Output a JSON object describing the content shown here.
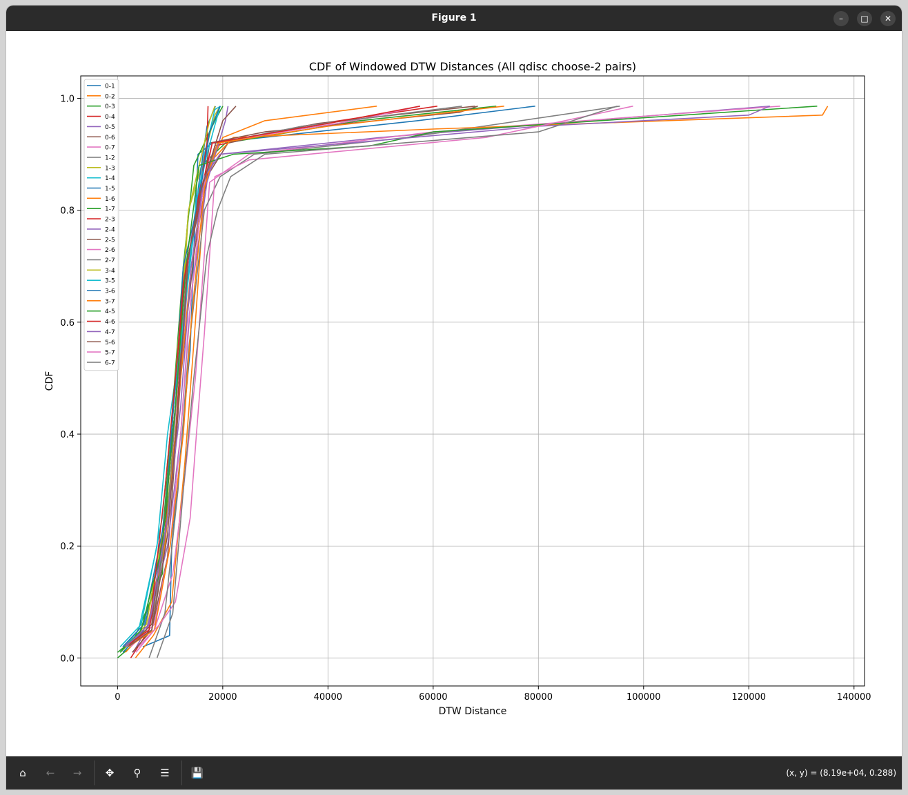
{
  "window": {
    "title": "Figure 1",
    "minimize_icon": "minimize-icon",
    "maximize_icon": "maximize-icon",
    "close_icon": "close-icon"
  },
  "toolbar": {
    "buttons": [
      {
        "name": "home",
        "icon": "home-icon",
        "enabled": true
      },
      {
        "name": "back",
        "icon": "arrow-left-icon",
        "enabled": false
      },
      {
        "name": "forward",
        "icon": "arrow-right-icon",
        "enabled": false
      },
      {
        "name": "pan",
        "icon": "move-icon",
        "enabled": true
      },
      {
        "name": "zoom",
        "icon": "search-icon",
        "enabled": true
      },
      {
        "name": "configure",
        "icon": "sliders-icon",
        "enabled": true
      },
      {
        "name": "save",
        "icon": "save-icon",
        "enabled": true
      }
    ],
    "coords": "(x, y) = (8.19e+04, 0.288)"
  },
  "chart_data": {
    "type": "line",
    "title": "CDF of Windowed DTW Distances (All qdisc choose-2 pairs)",
    "xlabel": "DTW Distance",
    "ylabel": "CDF",
    "xlim": [
      -7000,
      142000
    ],
    "ylim": [
      -0.05,
      1.04
    ],
    "xticks": [
      0,
      20000,
      40000,
      60000,
      80000,
      100000,
      120000,
      140000
    ],
    "xtick_labels": [
      "0",
      "20000",
      "40000",
      "60000",
      "80000",
      "100000",
      "120000",
      "140000"
    ],
    "yticks": [
      0.0,
      0.2,
      0.4,
      0.6,
      0.8,
      1.0
    ],
    "ytick_labels": [
      "0.0",
      "0.2",
      "0.4",
      "0.6",
      "0.8",
      "1.0"
    ],
    "grid": true,
    "legend_position": "top-left",
    "series": [
      {
        "name": "0-1",
        "color": "#1f77b4",
        "points": [
          [
            4800,
            0.02
          ],
          [
            9900,
            0.04
          ],
          [
            10300,
            0.2
          ],
          [
            13800,
            0.55
          ],
          [
            14800,
            0.8
          ],
          [
            15300,
            0.9
          ],
          [
            18000,
            0.92
          ],
          [
            57000,
            0.96
          ],
          [
            79400,
            0.986
          ]
        ]
      },
      {
        "name": "0-2",
        "color": "#ff7f0e",
        "points": [
          [
            3400,
            0.0
          ],
          [
            6800,
            0.04
          ],
          [
            10300,
            0.1
          ],
          [
            12800,
            0.35
          ],
          [
            14800,
            0.6
          ],
          [
            16700,
            0.86
          ],
          [
            20000,
            0.93
          ],
          [
            28000,
            0.96
          ],
          [
            49300,
            0.986
          ]
        ]
      },
      {
        "name": "0-3",
        "color": "#2ca02c",
        "points": [
          [
            0,
            0.0
          ],
          [
            2500,
            0.02
          ],
          [
            8500,
            0.15
          ],
          [
            11000,
            0.5
          ],
          [
            13500,
            0.8
          ],
          [
            16000,
            0.88
          ],
          [
            20500,
            0.92
          ],
          [
            46000,
            0.96
          ],
          [
            72000,
            0.986
          ]
        ]
      },
      {
        "name": "0-4",
        "color": "#d62728",
        "points": [
          [
            2500,
            0.0
          ],
          [
            6000,
            0.05
          ],
          [
            8500,
            0.18
          ],
          [
            11000,
            0.4
          ],
          [
            13200,
            0.7
          ],
          [
            15800,
            0.82
          ],
          [
            18500,
            0.915
          ],
          [
            35000,
            0.95
          ],
          [
            60800,
            0.986
          ]
        ]
      },
      {
        "name": "0-5",
        "color": "#9467bd",
        "points": [
          [
            3000,
            0.01
          ],
          [
            6000,
            0.06
          ],
          [
            9000,
            0.2
          ],
          [
            11500,
            0.45
          ],
          [
            14000,
            0.75
          ],
          [
            16500,
            0.86
          ],
          [
            19500,
            0.9
          ],
          [
            50000,
            0.93
          ],
          [
            124000,
            0.986
          ]
        ]
      },
      {
        "name": "0-6",
        "color": "#8c564b",
        "points": [
          [
            2800,
            0.01
          ],
          [
            6500,
            0.05
          ],
          [
            9500,
            0.18
          ],
          [
            12000,
            0.5
          ],
          [
            14500,
            0.72
          ],
          [
            17000,
            0.86
          ],
          [
            21000,
            0.92
          ],
          [
            38000,
            0.955
          ],
          [
            68000,
            0.986
          ]
        ]
      },
      {
        "name": "0-7",
        "color": "#e377c2",
        "points": [
          [
            3500,
            0.01
          ],
          [
            7000,
            0.05
          ],
          [
            10500,
            0.15
          ],
          [
            12500,
            0.3
          ],
          [
            14800,
            0.5
          ],
          [
            17500,
            0.85
          ],
          [
            25000,
            0.9
          ],
          [
            60000,
            0.94
          ],
          [
            126000,
            0.986
          ]
        ]
      },
      {
        "name": "1-2",
        "color": "#7f7f7f",
        "points": [
          [
            6000,
            0.0
          ],
          [
            9000,
            0.08
          ],
          [
            11500,
            0.3
          ],
          [
            13500,
            0.55
          ],
          [
            16500,
            0.8
          ],
          [
            19500,
            0.86
          ],
          [
            26000,
            0.9
          ],
          [
            55000,
            0.93
          ],
          [
            95500,
            0.986
          ]
        ]
      },
      {
        "name": "1-3",
        "color": "#bcbd22",
        "points": [
          [
            500,
            0.01
          ],
          [
            5000,
            0.05
          ],
          [
            9000,
            0.2
          ],
          [
            11500,
            0.5
          ],
          [
            13500,
            0.8
          ],
          [
            16000,
            0.88
          ],
          [
            18500,
            0.97
          ],
          [
            19500,
            0.986
          ]
        ]
      },
      {
        "name": "1-4",
        "color": "#17becf",
        "points": [
          [
            500,
            0.01
          ],
          [
            4000,
            0.05
          ],
          [
            7500,
            0.2
          ],
          [
            9500,
            0.4
          ],
          [
            12500,
            0.6
          ],
          [
            15000,
            0.8
          ],
          [
            16500,
            0.9
          ],
          [
            18500,
            0.98
          ],
          [
            19600,
            0.986
          ]
        ]
      },
      {
        "name": "1-5",
        "color": "#1f77b4",
        "points": [
          [
            1000,
            0.01
          ],
          [
            5000,
            0.05
          ],
          [
            8000,
            0.18
          ],
          [
            10500,
            0.4
          ],
          [
            13000,
            0.65
          ],
          [
            15500,
            0.85
          ],
          [
            17000,
            0.95
          ],
          [
            18600,
            0.986
          ]
        ]
      },
      {
        "name": "1-6",
        "color": "#ff7f0e",
        "points": [
          [
            1500,
            0.01
          ],
          [
            5500,
            0.05
          ],
          [
            9000,
            0.2
          ],
          [
            11500,
            0.45
          ],
          [
            14000,
            0.7
          ],
          [
            17000,
            0.88
          ],
          [
            22000,
            0.93
          ],
          [
            60000,
            0.945
          ],
          [
            134000,
            0.97
          ],
          [
            135000,
            0.986
          ]
        ]
      },
      {
        "name": "1-7",
        "color": "#2ca02c",
        "points": [
          [
            0,
            0.01
          ],
          [
            4000,
            0.04
          ],
          [
            8000,
            0.15
          ],
          [
            10500,
            0.45
          ],
          [
            12500,
            0.7
          ],
          [
            14500,
            0.88
          ],
          [
            18500,
            0.96
          ],
          [
            20000,
            0.986
          ]
        ]
      },
      {
        "name": "2-3",
        "color": "#d62728",
        "points": [
          [
            1500,
            0.02
          ],
          [
            6000,
            0.06
          ],
          [
            8500,
            0.2
          ],
          [
            11000,
            0.45
          ],
          [
            12500,
            0.66
          ],
          [
            15000,
            0.8
          ],
          [
            17000,
            0.92
          ],
          [
            17200,
            0.986
          ]
        ]
      },
      {
        "name": "2-4",
        "color": "#9467bd",
        "points": [
          [
            1000,
            0.02
          ],
          [
            5500,
            0.05
          ],
          [
            9500,
            0.2
          ],
          [
            12000,
            0.4
          ],
          [
            14000,
            0.65
          ],
          [
            17000,
            0.85
          ],
          [
            20500,
            0.96
          ],
          [
            21000,
            0.986
          ]
        ]
      },
      {
        "name": "2-5",
        "color": "#8c564b",
        "points": [
          [
            2000,
            0.02
          ],
          [
            6500,
            0.06
          ],
          [
            9500,
            0.3
          ],
          [
            11500,
            0.5
          ],
          [
            13500,
            0.72
          ],
          [
            16000,
            0.82
          ],
          [
            17500,
            0.92
          ],
          [
            28000,
            0.94
          ],
          [
            65000,
            0.975
          ],
          [
            68500,
            0.986
          ]
        ]
      },
      {
        "name": "2-6",
        "color": "#e377c2",
        "points": [
          [
            2500,
            0.02
          ],
          [
            7000,
            0.06
          ],
          [
            10000,
            0.2
          ],
          [
            12000,
            0.4
          ],
          [
            13500,
            0.6
          ],
          [
            16000,
            0.82
          ],
          [
            18000,
            0.92
          ],
          [
            45000,
            0.96
          ],
          [
            57500,
            0.986
          ]
        ]
      },
      {
        "name": "2-7",
        "color": "#7f7f7f",
        "points": [
          [
            2000,
            0.02
          ],
          [
            6500,
            0.05
          ],
          [
            9500,
            0.25
          ],
          [
            11500,
            0.5
          ],
          [
            13500,
            0.72
          ],
          [
            16000,
            0.84
          ],
          [
            19000,
            0.92
          ],
          [
            35000,
            0.95
          ],
          [
            65500,
            0.986
          ]
        ]
      },
      {
        "name": "3-4",
        "color": "#bcbd22",
        "points": [
          [
            1500,
            0.02
          ],
          [
            5500,
            0.06
          ],
          [
            9000,
            0.25
          ],
          [
            11000,
            0.5
          ],
          [
            13500,
            0.8
          ],
          [
            17500,
            0.96
          ],
          [
            18500,
            0.986
          ]
        ]
      },
      {
        "name": "3-5",
        "color": "#17becf",
        "points": [
          [
            500,
            0.02
          ],
          [
            4500,
            0.06
          ],
          [
            8500,
            0.25
          ],
          [
            10000,
            0.4
          ],
          [
            12500,
            0.6
          ],
          [
            15000,
            0.82
          ],
          [
            17000,
            0.9
          ],
          [
            19500,
            0.986
          ]
        ]
      },
      {
        "name": "3-6",
        "color": "#1f77b4",
        "points": [
          [
            1000,
            0.02
          ],
          [
            5000,
            0.06
          ],
          [
            9000,
            0.25
          ],
          [
            11500,
            0.55
          ],
          [
            12500,
            0.7
          ],
          [
            15500,
            0.82
          ],
          [
            17500,
            0.94
          ],
          [
            19500,
            0.986
          ]
        ]
      },
      {
        "name": "3-7",
        "color": "#ff7f0e",
        "points": [
          [
            2000,
            0.02
          ],
          [
            7000,
            0.05
          ],
          [
            10000,
            0.2
          ],
          [
            12500,
            0.4
          ],
          [
            14000,
            0.6
          ],
          [
            16500,
            0.84
          ],
          [
            19000,
            0.92
          ],
          [
            40000,
            0.95
          ],
          [
            73500,
            0.986
          ]
        ]
      },
      {
        "name": "4-5",
        "color": "#2ca02c",
        "points": [
          [
            500,
            0.01
          ],
          [
            4500,
            0.05
          ],
          [
            8500,
            0.2
          ],
          [
            11000,
            0.45
          ],
          [
            13000,
            0.7
          ],
          [
            15500,
            0.88
          ],
          [
            22000,
            0.9
          ],
          [
            48000,
            0.915
          ],
          [
            60000,
            0.94
          ],
          [
            133000,
            0.986
          ]
        ]
      },
      {
        "name": "4-6",
        "color": "#d62728",
        "points": [
          [
            1500,
            0.02
          ],
          [
            6000,
            0.05
          ],
          [
            9000,
            0.3
          ],
          [
            11500,
            0.55
          ],
          [
            12500,
            0.67
          ],
          [
            15500,
            0.82
          ],
          [
            18000,
            0.92
          ],
          [
            40000,
            0.955
          ],
          [
            57500,
            0.986
          ]
        ]
      },
      {
        "name": "4-7",
        "color": "#9467bd",
        "points": [
          [
            1500,
            0.02
          ],
          [
            6000,
            0.06
          ],
          [
            9500,
            0.25
          ],
          [
            12000,
            0.45
          ],
          [
            14000,
            0.7
          ],
          [
            16500,
            0.86
          ],
          [
            19500,
            0.9
          ],
          [
            50000,
            0.925
          ],
          [
            80000,
            0.95
          ],
          [
            120000,
            0.97
          ],
          [
            124000,
            0.986
          ]
        ]
      },
      {
        "name": "5-6",
        "color": "#8c564b",
        "points": [
          [
            2000,
            0.02
          ],
          [
            6500,
            0.05
          ],
          [
            9500,
            0.22
          ],
          [
            11500,
            0.45
          ],
          [
            13500,
            0.72
          ],
          [
            16000,
            0.84
          ],
          [
            20000,
            0.96
          ],
          [
            22500,
            0.986
          ]
        ]
      },
      {
        "name": "5-7",
        "color": "#e377c2",
        "points": [
          [
            4000,
            0.02
          ],
          [
            8000,
            0.06
          ],
          [
            11000,
            0.1
          ],
          [
            13800,
            0.25
          ],
          [
            15000,
            0.4
          ],
          [
            16500,
            0.58
          ],
          [
            18500,
            0.86
          ],
          [
            25000,
            0.89
          ],
          [
            70000,
            0.93
          ],
          [
            98000,
            0.986
          ]
        ]
      },
      {
        "name": "6-7",
        "color": "#7f7f7f",
        "points": [
          [
            7500,
            0.0
          ],
          [
            10500,
            0.08
          ],
          [
            12500,
            0.3
          ],
          [
            14500,
            0.5
          ],
          [
            17000,
            0.72
          ],
          [
            19000,
            0.8
          ],
          [
            21500,
            0.86
          ],
          [
            28000,
            0.9
          ],
          [
            80000,
            0.94
          ],
          [
            95000,
            0.986
          ]
        ]
      }
    ]
  }
}
